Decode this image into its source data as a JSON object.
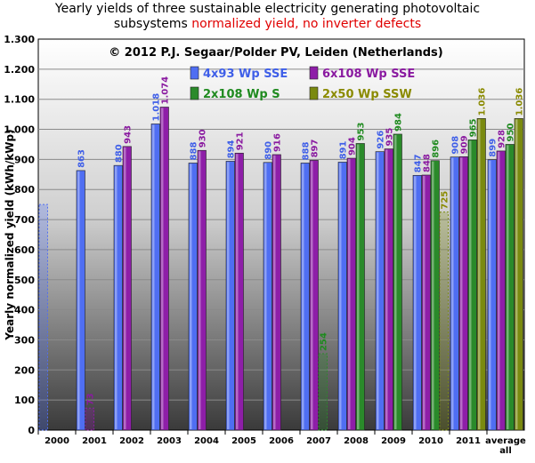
{
  "header": {
    "title_line1": "Yearly yields of three sustainable electricity generating photovoltaic",
    "title_line2_black": "subsystems ",
    "title_line2_red": "normalized yield, no inverter defects"
  },
  "chart_data": {
    "type": "bar",
    "title": "Yearly yields of three sustainable electricity generating photovoltaic subsystems normalized yield, no inverter defects",
    "copyright": "© 2012 P.J. Segaar/Polder PV, Leiden (Netherlands)",
    "ylabel": "Yearly normalized yield (kWh/kWp)",
    "xlabel": "",
    "ylim": [
      0,
      1300
    ],
    "yticks": [
      0,
      100,
      200,
      300,
      400,
      500,
      600,
      700,
      800,
      900,
      1000,
      1100,
      1200,
      1300
    ],
    "ytick_labels": [
      "0",
      "100",
      "200",
      "300",
      "400",
      "500",
      "600",
      "700",
      "800",
      "900",
      "1.000",
      "1.100",
      "1.200",
      "1.300"
    ],
    "grid": true,
    "legend_position": "top",
    "categories": [
      "2000",
      "2001",
      "2002",
      "2003",
      "2004",
      "2005",
      "2006",
      "2007",
      "2008",
      "2009",
      "2010",
      "2011",
      "average all"
    ],
    "series": [
      {
        "name": "4x93 Wp SSE",
        "color": "#4f6ef2",
        "label_color": "#3f5fe8",
        "values": [
          null,
          863,
          880,
          1018,
          888,
          894,
          890,
          888,
          891,
          926,
          847,
          908,
          899
        ],
        "partial": [
          750,
          null,
          null,
          null,
          null,
          null,
          null,
          null,
          null,
          null,
          null,
          null,
          null
        ],
        "labels": [
          null,
          "863",
          "880",
          "1.018",
          "888",
          "894",
          "890",
          "888",
          "891",
          "926",
          "847",
          "908",
          "899"
        ]
      },
      {
        "name": "6x108 Wp SSE",
        "color": "#8e1ea8",
        "label_color": "#8a1aa0",
        "values": [
          null,
          null,
          943,
          1074,
          930,
          921,
          916,
          897,
          904,
          935,
          848,
          909,
          928
        ],
        "partial": [
          null,
          73,
          null,
          null,
          null,
          null,
          null,
          null,
          null,
          null,
          null,
          null,
          null
        ],
        "labels": [
          null,
          "73",
          "943",
          "1.074",
          "930",
          "921",
          "916",
          "897",
          "904",
          "935",
          "848",
          "909",
          "928"
        ]
      },
      {
        "name": "2x108 Wp S",
        "color": "#2a8a2a",
        "label_color": "#1f8a1f",
        "values": [
          null,
          null,
          null,
          null,
          null,
          null,
          null,
          null,
          953,
          984,
          896,
          965,
          950
        ],
        "partial": [
          null,
          null,
          null,
          null,
          null,
          null,
          null,
          254,
          null,
          null,
          null,
          null,
          null
        ],
        "labels": [
          null,
          null,
          null,
          null,
          null,
          null,
          null,
          "254",
          "953",
          "984",
          "896",
          "965",
          "950"
        ]
      },
      {
        "name": "2x50 Wp SSW",
        "color": "#7a8a10",
        "label_color": "#8a8a00",
        "values": [
          null,
          null,
          null,
          null,
          null,
          null,
          null,
          null,
          null,
          null,
          null,
          1036,
          1036
        ],
        "partial": [
          null,
          null,
          null,
          null,
          null,
          null,
          null,
          null,
          null,
          null,
          725,
          null,
          null
        ],
        "labels": [
          null,
          null,
          null,
          null,
          null,
          null,
          null,
          null,
          null,
          null,
          "725",
          "1.036",
          "1.036"
        ]
      }
    ]
  }
}
